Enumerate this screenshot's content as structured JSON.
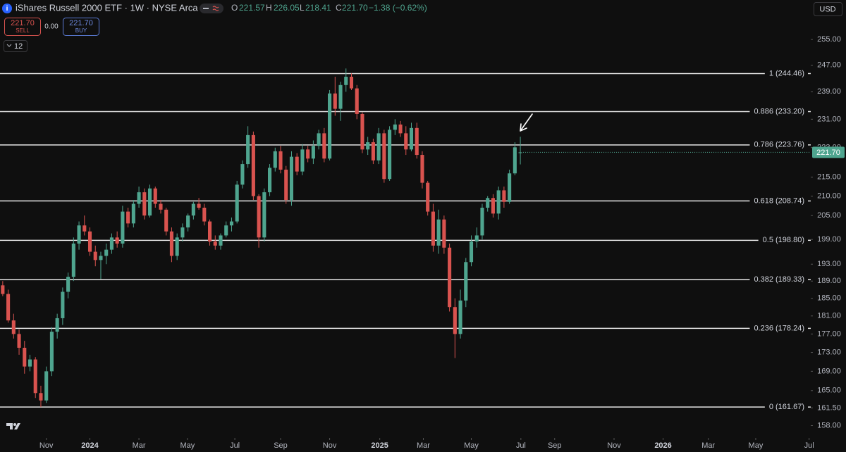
{
  "header": {
    "title": "iShares Russell 2000 ETF · 1W · NYSE Arca",
    "o_label": "O",
    "o": "221.57",
    "h_label": "H",
    "h": "226.05",
    "l_label": "L",
    "l": "218.41",
    "c_label": "C",
    "c": "221.70",
    "change": "−1.38 (−0.62%)",
    "sell_price": "221.70",
    "sell": "SELL",
    "spread": "0.00",
    "buy_price": "221.70",
    "buy": "BUY",
    "indicators": "12",
    "currency": "USD"
  },
  "chart_data": {
    "type": "candlestick",
    "open": [
      188.0,
      186.0,
      180.0,
      177.0,
      174.0,
      170.0,
      171.5,
      164.5,
      163.0,
      169.0,
      177.5,
      180.5,
      186.5,
      190.0,
      198.0,
      202.5,
      201.0,
      196.0,
      194.0,
      195.0,
      196.5,
      199.5,
      198.0,
      206.0,
      203.0,
      208.0,
      211.0,
      205.0,
      212.0,
      208.0,
      206.5,
      201.0,
      195.0,
      199.5,
      202.0,
      205.0,
      208.0,
      207.0,
      203.5,
      198.5,
      197.5,
      200.0,
      202.5,
      203.5,
      213.0,
      218.5,
      226.5,
      210.0,
      199.5,
      211.0,
      217.5,
      222.0,
      217.0,
      209.0,
      220.5,
      216.5,
      222.5,
      220.0,
      223.5,
      227.0,
      220.0,
      238.5,
      234.0,
      241.0,
      243.5,
      240.0,
      232.5,
      222.5,
      224.5,
      219.5,
      227.0,
      214.5,
      228.0,
      229.5,
      227.0,
      222.5,
      228.5,
      221.0,
      213.5,
      206.0,
      197.5,
      204.0,
      197.0,
      183.0,
      177.0,
      184.5,
      193.5,
      198.5,
      200.0,
      207.0,
      209.5,
      205.5,
      211.5,
      208.5,
      216.0,
      221.57
    ],
    "high": [
      189.0,
      187.0,
      181.5,
      178.0,
      175.5,
      172.5,
      172.0,
      166.0,
      170.0,
      178.5,
      181.5,
      187.5,
      191.0,
      199.5,
      203.5,
      205.0,
      202.0,
      197.5,
      196.0,
      198.0,
      200.5,
      201.0,
      207.5,
      207.0,
      209.0,
      212.5,
      212.0,
      213.0,
      212.5,
      209.0,
      207.0,
      202.0,
      200.5,
      203.0,
      205.5,
      208.5,
      209.5,
      208.0,
      204.0,
      200.0,
      200.5,
      203.5,
      204.5,
      214.0,
      219.5,
      229.0,
      227.5,
      210.5,
      212.0,
      218.5,
      223.0,
      223.5,
      218.0,
      222.0,
      221.5,
      224.0,
      223.5,
      225.0,
      228.0,
      228.5,
      239.5,
      243.5,
      242.0,
      246.0,
      244.5,
      241.0,
      233.0,
      226.0,
      225.5,
      228.5,
      228.0,
      229.0,
      231.0,
      230.5,
      229.0,
      230.0,
      230.0,
      222.0,
      214.0,
      208.0,
      206.5,
      205.0,
      198.0,
      185.0,
      187.0,
      194.5,
      200.0,
      202.0,
      208.0,
      210.0,
      210.5,
      212.5,
      212.5,
      217.0,
      224.5,
      226.05
    ],
    "low": [
      185.5,
      179.5,
      176.0,
      172.5,
      168.5,
      169.0,
      163.5,
      161.67,
      162.5,
      168.0,
      176.0,
      179.0,
      185.0,
      189.0,
      196.5,
      200.0,
      195.0,
      192.5,
      189.5,
      193.0,
      195.5,
      197.0,
      197.0,
      202.0,
      202.0,
      207.0,
      204.0,
      204.5,
      207.0,
      205.5,
      200.0,
      193.5,
      194.0,
      198.5,
      201.0,
      204.0,
      206.5,
      202.5,
      197.5,
      196.5,
      196.5,
      199.5,
      201.0,
      203.0,
      212.0,
      217.5,
      209.0,
      197.0,
      198.5,
      210.0,
      216.5,
      216.0,
      208.0,
      207.5,
      215.5,
      215.5,
      219.0,
      218.5,
      222.5,
      219.0,
      219.5,
      232.0,
      230.5,
      239.0,
      239.5,
      231.0,
      221.5,
      221.0,
      218.5,
      218.5,
      213.5,
      214.0,
      226.5,
      226.0,
      221.0,
      222.0,
      220.0,
      212.0,
      205.0,
      196.0,
      195.5,
      195.5,
      182.0,
      171.8,
      176.0,
      183.0,
      192.5,
      197.0,
      199.0,
      206.0,
      204.5,
      204.0,
      207.0,
      208.0,
      215.5,
      218.41
    ],
    "close": [
      186.0,
      180.0,
      177.0,
      174.0,
      170.0,
      171.5,
      164.5,
      163.0,
      169.0,
      177.5,
      180.5,
      186.5,
      190.0,
      198.0,
      202.5,
      201.0,
      196.0,
      194.0,
      195.0,
      196.5,
      199.5,
      198.0,
      206.0,
      203.0,
      208.0,
      211.0,
      205.0,
      212.0,
      208.0,
      206.5,
      201.0,
      195.0,
      199.5,
      202.0,
      205.0,
      208.0,
      207.0,
      203.5,
      198.5,
      197.5,
      200.0,
      202.5,
      203.5,
      213.0,
      218.5,
      226.5,
      210.0,
      199.5,
      211.0,
      217.5,
      222.0,
      217.0,
      209.0,
      220.5,
      216.5,
      222.5,
      220.0,
      223.5,
      227.0,
      220.0,
      238.5,
      234.0,
      241.0,
      243.5,
      240.0,
      232.5,
      222.5,
      224.5,
      219.5,
      227.0,
      214.5,
      228.0,
      229.5,
      227.0,
      222.5,
      228.5,
      221.0,
      213.5,
      206.0,
      197.5,
      204.0,
      197.0,
      183.0,
      177.0,
      184.5,
      193.5,
      198.5,
      200.0,
      207.0,
      209.5,
      205.5,
      211.5,
      208.5,
      216.0,
      223.08,
      221.7
    ],
    "up_color": "#4fa58f",
    "down_color": "#d9534f",
    "last_price_label": "221.70",
    "log_scale": true,
    "grid": false,
    "xlim": [
      -0.5,
      148.3
    ],
    "xticks": [
      {
        "value": 8.0,
        "label": "Nov"
      },
      {
        "value": 16.0,
        "label": "2024"
      },
      {
        "value": 25.0,
        "label": "Mar"
      },
      {
        "value": 33.9,
        "label": "May"
      },
      {
        "value": 42.6,
        "label": "Jul"
      },
      {
        "value": 51.0,
        "label": "Sep"
      },
      {
        "value": 60.0,
        "label": "Nov"
      },
      {
        "value": 69.2,
        "label": "2025"
      },
      {
        "value": 77.2,
        "label": "Mar"
      },
      {
        "value": 86.0,
        "label": "May"
      },
      {
        "value": 95.1,
        "label": "Jul"
      },
      {
        "value": 101.3,
        "label": "Sep"
      },
      {
        "value": 112.2,
        "label": "Nov"
      },
      {
        "value": 121.2,
        "label": "2026"
      },
      {
        "value": 129.5,
        "label": "Mar"
      },
      {
        "value": 138.2,
        "label": "May"
      },
      {
        "value": 148.0,
        "label": "Jul"
      }
    ],
    "ylim": [
      155.6,
      267.8
    ],
    "yticks": [
      {
        "value": 255,
        "label": "255.00"
      },
      {
        "value": 247,
        "label": "247.00"
      },
      {
        "value": 239,
        "label": "239.00"
      },
      {
        "value": 231,
        "label": "231.00"
      },
      {
        "value": 223,
        "label": "223.00"
      },
      {
        "value": 215,
        "label": "215.00"
      },
      {
        "value": 210,
        "label": "210.00"
      },
      {
        "value": 205,
        "label": "205.00"
      },
      {
        "value": 199,
        "label": "199.00"
      },
      {
        "value": 193,
        "label": "193.00"
      },
      {
        "value": 189,
        "label": "189.00"
      },
      {
        "value": 185,
        "label": "185.00"
      },
      {
        "value": 181,
        "label": "181.00"
      },
      {
        "value": 177,
        "label": "177.00"
      },
      {
        "value": 173,
        "label": "173.00"
      },
      {
        "value": 169,
        "label": "169.00"
      },
      {
        "value": 165,
        "label": "165.00"
      },
      {
        "value": 161.5,
        "label": "161.50"
      },
      {
        "value": 158,
        "label": "158.00"
      }
    ],
    "fib_levels": [
      {
        "value": 244.46,
        "label": "1 (244.46)"
      },
      {
        "value": 233.2,
        "label": "0.886 (233.20)"
      },
      {
        "value": 223.76,
        "label": "0.786 (223.76)"
      },
      {
        "value": 208.74,
        "label": "0.618 (208.74)"
      },
      {
        "value": 198.8,
        "label": "0.5 (198.80)"
      },
      {
        "value": 189.33,
        "label": "0.382 (189.33)"
      },
      {
        "value": 178.24,
        "label": "0.236 (178.24)"
      },
      {
        "value": 161.67,
        "label": "0 (161.67)"
      }
    ]
  }
}
